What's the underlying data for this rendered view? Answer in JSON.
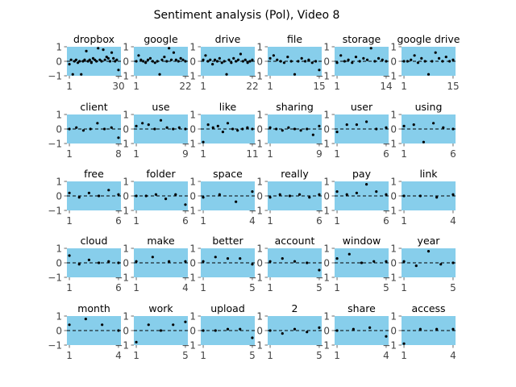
{
  "chart_data": {
    "type": "scatter",
    "title": "Sentiment analysis (Pol), Video 8",
    "layout_grid": "5x6",
    "ylim": [
      -1,
      1
    ],
    "yticks": [
      -1,
      0,
      1
    ],
    "reference_line": {
      "y": 0,
      "style": "dashed"
    },
    "style": {
      "panel_bg": "#87ceeb",
      "point_color": "#000000",
      "tick_color": "#444444"
    },
    "panels": [
      {
        "title": "dropbox",
        "xlim": [
          1,
          30
        ],
        "xticks": [
          1,
          30
        ],
        "values": [
          -0.2,
          0.1,
          -0.9,
          0.0,
          0.1,
          -0.1,
          0.0,
          -0.9,
          0.0,
          0.1,
          0.7,
          0.0,
          0.1,
          -0.1,
          0.2,
          0.1,
          0.0,
          0.9,
          0.1,
          0.0,
          0.8,
          0.1,
          0.3,
          0.2,
          0.0,
          0.6,
          0.2,
          0.0,
          0.1,
          -0.6
        ]
      },
      {
        "title": "google",
        "xlim": [
          1,
          22
        ],
        "xticks": [
          1,
          22
        ],
        "values": [
          0.0,
          0.4,
          0.1,
          0.0,
          -0.1,
          0.1,
          0.2,
          0.0,
          -0.1,
          0.0,
          -0.9,
          0.1,
          0.3,
          0.0,
          0.9,
          0.1,
          0.6,
          0.1,
          0.0,
          0.2,
          0.1,
          0.0
        ]
      },
      {
        "title": "drive",
        "xlim": [
          1,
          22
        ],
        "xticks": [
          1,
          22
        ],
        "values": [
          0.1,
          0.4,
          0.0,
          0.1,
          -0.2,
          0.1,
          0.0,
          0.2,
          -0.1,
          0.0,
          -0.9,
          0.1,
          -0.1,
          0.2,
          0.0,
          0.1,
          0.5,
          0.0,
          0.1,
          -0.1,
          0.0,
          0.1
        ]
      },
      {
        "title": "file",
        "xlim": [
          1,
          15
        ],
        "xticks": [
          1,
          15
        ],
        "values": [
          0.2,
          0.4,
          0.1,
          0.0,
          -0.1,
          0.3,
          0.0,
          -0.9,
          0.0,
          0.2,
          0.0,
          0.1,
          -0.1,
          0.0,
          -0.6
        ]
      },
      {
        "title": "storage",
        "xlim": [
          1,
          14
        ],
        "xticks": [
          1,
          14
        ],
        "values": [
          -0.1,
          0.4,
          0.0,
          0.1,
          -0.1,
          0.3,
          0.0,
          0.2,
          0.1,
          0.9,
          0.0,
          0.2,
          0.1,
          0.0
        ]
      },
      {
        "title": "google drive",
        "xlim": [
          1,
          15
        ],
        "xticks": [
          1,
          15
        ],
        "values": [
          0.0,
          0.0,
          0.1,
          0.4,
          -0.1,
          0.2,
          0.0,
          -0.9,
          0.0,
          0.6,
          0.2,
          0.0,
          0.3,
          0.0,
          0.1
        ]
      },
      {
        "title": "client",
        "xlim": [
          1,
          8
        ],
        "xticks": [
          1,
          8
        ],
        "values": [
          0.0,
          0.1,
          -0.1,
          0.0,
          0.4,
          0.0,
          0.1,
          -0.6
        ]
      },
      {
        "title": "use",
        "xlim": [
          1,
          9
        ],
        "xticks": [
          1,
          9
        ],
        "values": [
          0.2,
          0.4,
          0.3,
          0.0,
          0.6,
          0.1,
          0.0,
          0.1,
          0.0
        ]
      },
      {
        "title": "like",
        "xlim": [
          1,
          11
        ],
        "xticks": [
          1,
          11
        ],
        "values": [
          -0.9,
          0.3,
          0.1,
          0.2,
          -0.2,
          0.4,
          0.0,
          -0.1,
          0.0,
          0.1,
          0.0
        ]
      },
      {
        "title": "sharing",
        "xlim": [
          1,
          9
        ],
        "xticks": [
          1,
          9
        ],
        "values": [
          0.1,
          0.0,
          -0.1,
          0.1,
          0.0,
          -0.1,
          0.0,
          -0.4,
          0.2
        ]
      },
      {
        "title": "user",
        "xlim": [
          1,
          6
        ],
        "xticks": [
          1,
          6
        ],
        "values": [
          -0.2,
          0.3,
          0.3,
          0.5,
          0.0,
          0.1
        ]
      },
      {
        "title": "using",
        "xlim": [
          1,
          6
        ],
        "xticks": [
          1,
          6
        ],
        "values": [
          0.2,
          0.3,
          -0.9,
          0.4,
          0.1,
          0.0
        ]
      },
      {
        "title": "free",
        "xlim": [
          1,
          6
        ],
        "xticks": [
          1,
          6
        ],
        "values": [
          0.2,
          -0.1,
          0.2,
          0.0,
          0.4,
          0.1
        ]
      },
      {
        "title": "folder",
        "xlim": [
          1,
          6
        ],
        "xticks": [
          1,
          6
        ],
        "values": [
          0.0,
          0.0,
          0.1,
          -0.2,
          0.1,
          -0.6
        ]
      },
      {
        "title": "space",
        "xlim": [
          1,
          4
        ],
        "xticks": [
          1,
          4
        ],
        "values": [
          -0.1,
          0.1,
          -0.4,
          0.3
        ]
      },
      {
        "title": "really",
        "xlim": [
          1,
          6
        ],
        "xticks": [
          1,
          6
        ],
        "values": [
          -0.1,
          0.1,
          0.0,
          0.1,
          -0.1,
          0.1
        ]
      },
      {
        "title": "pay",
        "xlim": [
          1,
          6
        ],
        "xticks": [
          1,
          6
        ],
        "values": [
          0.3,
          0.1,
          0.2,
          0.8,
          0.3,
          0.1
        ]
      },
      {
        "title": "link",
        "xlim": [
          1,
          4
        ],
        "xticks": [
          1,
          4
        ],
        "values": [
          0.0,
          0.0,
          -0.1,
          0.1
        ]
      },
      {
        "title": "cloud",
        "xlim": [
          1,
          6
        ],
        "xticks": [
          1,
          6
        ],
        "values": [
          0.5,
          -0.1,
          0.2,
          0.0,
          0.1,
          0.0
        ]
      },
      {
        "title": "make",
        "xlim": [
          1,
          4
        ],
        "xticks": [
          1,
          4
        ],
        "values": [
          0.1,
          0.4,
          0.1,
          0.1
        ]
      },
      {
        "title": "better",
        "xlim": [
          1,
          5
        ],
        "xticks": [
          1,
          5
        ],
        "values": [
          0.1,
          0.4,
          0.3,
          0.3,
          -0.1
        ]
      },
      {
        "title": "account",
        "xlim": [
          1,
          5
        ],
        "xticks": [
          1,
          5
        ],
        "values": [
          0.1,
          0.3,
          0.1,
          0.0,
          -0.5
        ]
      },
      {
        "title": "window",
        "xlim": [
          1,
          5
        ],
        "xticks": [
          1,
          5
        ],
        "values": [
          0.3,
          0.6,
          0.0,
          0.1,
          0.1
        ]
      },
      {
        "title": "year",
        "xlim": [
          1,
          5
        ],
        "xticks": [
          1,
          5
        ],
        "values": [
          0.1,
          -0.2,
          0.8,
          -0.1,
          0.0
        ]
      },
      {
        "title": "month",
        "xlim": [
          1,
          4
        ],
        "xticks": [
          1,
          4
        ],
        "values": [
          0.4,
          0.8,
          0.4,
          0.0
        ]
      },
      {
        "title": "work",
        "xlim": [
          1,
          5
        ],
        "xticks": [
          1,
          5
        ],
        "values": [
          -0.8,
          0.4,
          0.0,
          0.4,
          0.6
        ]
      },
      {
        "title": "upload",
        "xlim": [
          1,
          5
        ],
        "xticks": [
          1,
          5
        ],
        "values": [
          0.0,
          0.0,
          0.1,
          0.1,
          -0.5
        ]
      },
      {
        "title": "2",
        "xlim": [
          1,
          5
        ],
        "xticks": [
          1,
          5
        ],
        "values": [
          0.0,
          -0.2,
          0.1,
          -0.1,
          0.2
        ]
      },
      {
        "title": "share",
        "xlim": [
          1,
          4
        ],
        "xticks": [
          1,
          4
        ],
        "values": [
          0.0,
          0.1,
          0.2,
          -0.4
        ]
      },
      {
        "title": "access",
        "xlim": [
          1,
          4
        ],
        "xticks": [
          1,
          4
        ],
        "values": [
          -0.9,
          0.1,
          0.1,
          0.1
        ]
      }
    ]
  }
}
